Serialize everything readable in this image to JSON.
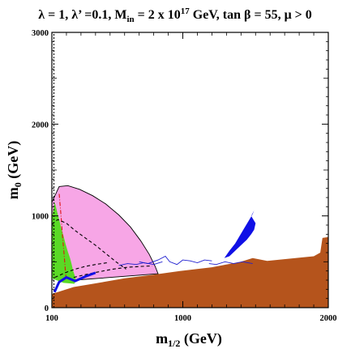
{
  "chart_data": {
    "type": "area",
    "title": {
      "parts": [
        "λ = 1, λ’ =0.1, M",
        "in",
        " = 2 x 10",
        "17",
        " GeV, tan β = 55,  μ > 0"
      ]
    },
    "xlabel": {
      "main": "m",
      "sub": "1/2",
      "unit": " (GeV)"
    },
    "ylabel": {
      "main": "m",
      "sub": "0",
      "unit": " (GeV)"
    },
    "xlim": [
      100,
      2000
    ],
    "ylim": [
      0,
      3000
    ],
    "x_ticks": [
      {
        "value": 100,
        "label": "100"
      },
      {
        "value": 1000,
        "label": "1000"
      },
      {
        "value": 2000,
        "label": "2000"
      }
    ],
    "y_ticks": [
      {
        "value": 0,
        "label": "0"
      },
      {
        "value": 1000,
        "label": "1000"
      },
      {
        "value": 2000,
        "label": "2000"
      },
      {
        "value": 3000,
        "label": "3000"
      }
    ],
    "grid": false,
    "regions": [
      {
        "kind": "pink-region",
        "color": "#f7a6e6",
        "outline": true,
        "points": [
          [
            100,
            1150
          ],
          [
            150,
            1320
          ],
          [
            210,
            1330
          ],
          [
            290,
            1290
          ],
          [
            380,
            1220
          ],
          [
            470,
            1130
          ],
          [
            560,
            1010
          ],
          [
            640,
            880
          ],
          [
            710,
            730
          ],
          [
            770,
            580
          ],
          [
            810,
            450
          ],
          [
            830,
            370
          ],
          [
            260,
            300
          ],
          [
            100,
            350
          ]
        ]
      },
      {
        "kind": "brown-region",
        "color": "#b5541c",
        "points": [
          [
            100,
            0
          ],
          [
            2000,
            0
          ],
          [
            2000,
            770
          ],
          [
            1960,
            760
          ],
          [
            1945,
            600
          ],
          [
            1900,
            560
          ],
          [
            1580,
            510
          ],
          [
            1480,
            540
          ],
          [
            1400,
            500
          ],
          [
            1200,
            440
          ],
          [
            980,
            400
          ],
          [
            800,
            360
          ],
          [
            600,
            320
          ],
          [
            400,
            265
          ],
          [
            250,
            225
          ],
          [
            160,
            180
          ],
          [
            100,
            150
          ]
        ]
      },
      {
        "kind": "green-region",
        "color": "#5ad926",
        "points": [
          [
            100,
            980
          ],
          [
            120,
            1150
          ],
          [
            135,
            1050
          ],
          [
            150,
            960
          ],
          [
            165,
            860
          ],
          [
            180,
            780
          ],
          [
            195,
            690
          ],
          [
            210,
            610
          ],
          [
            225,
            540
          ],
          [
            235,
            480
          ],
          [
            245,
            410
          ],
          [
            265,
            310
          ],
          [
            255,
            260
          ],
          [
            180,
            270
          ],
          [
            130,
            300
          ],
          [
            100,
            320
          ]
        ]
      },
      {
        "kind": "blue-spot-region",
        "color": "#1010e6",
        "points": [
          [
            1285,
            540
          ],
          [
            1320,
            620
          ],
          [
            1360,
            700
          ],
          [
            1390,
            780
          ],
          [
            1420,
            860
          ],
          [
            1450,
            940
          ],
          [
            1480,
            1020
          ],
          [
            1490,
            1060
          ],
          [
            1470,
            1000
          ],
          [
            1500,
            920
          ],
          [
            1490,
            850
          ],
          [
            1470,
            800
          ],
          [
            1440,
            740
          ],
          [
            1400,
            680
          ],
          [
            1360,
            620
          ],
          [
            1320,
            560
          ]
        ]
      }
    ],
    "lines": [
      {
        "kind": "black-dashed-vertical",
        "color": "#000000",
        "dash": "2,2",
        "points": [
          [
            114,
            0
          ],
          [
            114,
            3000
          ]
        ]
      },
      {
        "kind": "red-dash-dot",
        "color": "#e01010",
        "dash": "5,2,1,2",
        "points": [
          [
            150,
            1240
          ],
          [
            163,
            1000
          ],
          [
            172,
            800
          ],
          [
            183,
            600
          ],
          [
            192,
            420
          ],
          [
            198,
            310
          ]
        ]
      },
      {
        "kind": "black-dashed-curve",
        "color": "#000000",
        "dash": "4,3",
        "points": [
          [
            100,
            910
          ],
          [
            140,
            960
          ],
          [
            200,
            920
          ],
          [
            260,
            840
          ],
          [
            330,
            760
          ],
          [
            400,
            680
          ],
          [
            470,
            590
          ],
          [
            540,
            500
          ],
          [
            610,
            420
          ]
        ]
      },
      {
        "kind": "black-dashed-curve-2",
        "color": "#000000",
        "dash": "4,3",
        "points": [
          [
            250,
            330
          ],
          [
            330,
            360
          ],
          [
            420,
            390
          ],
          [
            520,
            420
          ],
          [
            620,
            440
          ],
          [
            720,
            450
          ],
          [
            790,
            455
          ]
        ]
      },
      {
        "kind": "black-dashed-curve-3",
        "color": "#000000",
        "dash": "4,3",
        "points": [
          [
            120,
            330
          ],
          [
            190,
            380
          ],
          [
            260,
            420
          ],
          [
            330,
            450
          ],
          [
            400,
            470
          ],
          [
            480,
            490
          ]
        ]
      },
      {
        "kind": "blue-thick",
        "color": "#1010e6",
        "dash": "",
        "width": 3,
        "points": [
          [
            118,
            170
          ],
          [
            150,
            280
          ],
          [
            200,
            330
          ],
          [
            260,
            290
          ],
          [
            330,
            340
          ],
          [
            400,
            380
          ]
        ]
      },
      {
        "kind": "blue-thin-contour",
        "color": "#2020d0",
        "dash": "",
        "width": 0.9,
        "points": [
          [
            700,
            500
          ],
          [
            760,
            480
          ],
          [
            830,
            520
          ],
          [
            880,
            560
          ],
          [
            910,
            500
          ],
          [
            960,
            470
          ],
          [
            1000,
            520
          ],
          [
            1050,
            510
          ],
          [
            1100,
            490
          ],
          [
            1150,
            520
          ],
          [
            1200,
            510
          ]
        ]
      },
      {
        "kind": "blue-thin-contour-2",
        "color": "#2020d0",
        "dash": "",
        "width": 0.9,
        "points": [
          [
            560,
            460
          ],
          [
            620,
            480
          ],
          [
            680,
            470
          ],
          [
            730,
            490
          ],
          [
            800,
            470
          ],
          [
            860,
            500
          ]
        ]
      },
      {
        "kind": "blue-thin-contour-3",
        "color": "#2020d0",
        "dash": "",
        "width": 0.9,
        "points": [
          [
            1180,
            480
          ],
          [
            1230,
            470
          ],
          [
            1290,
            500
          ],
          [
            1350,
            480
          ],
          [
            1410,
            500
          ],
          [
            1480,
            480
          ]
        ]
      }
    ]
  }
}
